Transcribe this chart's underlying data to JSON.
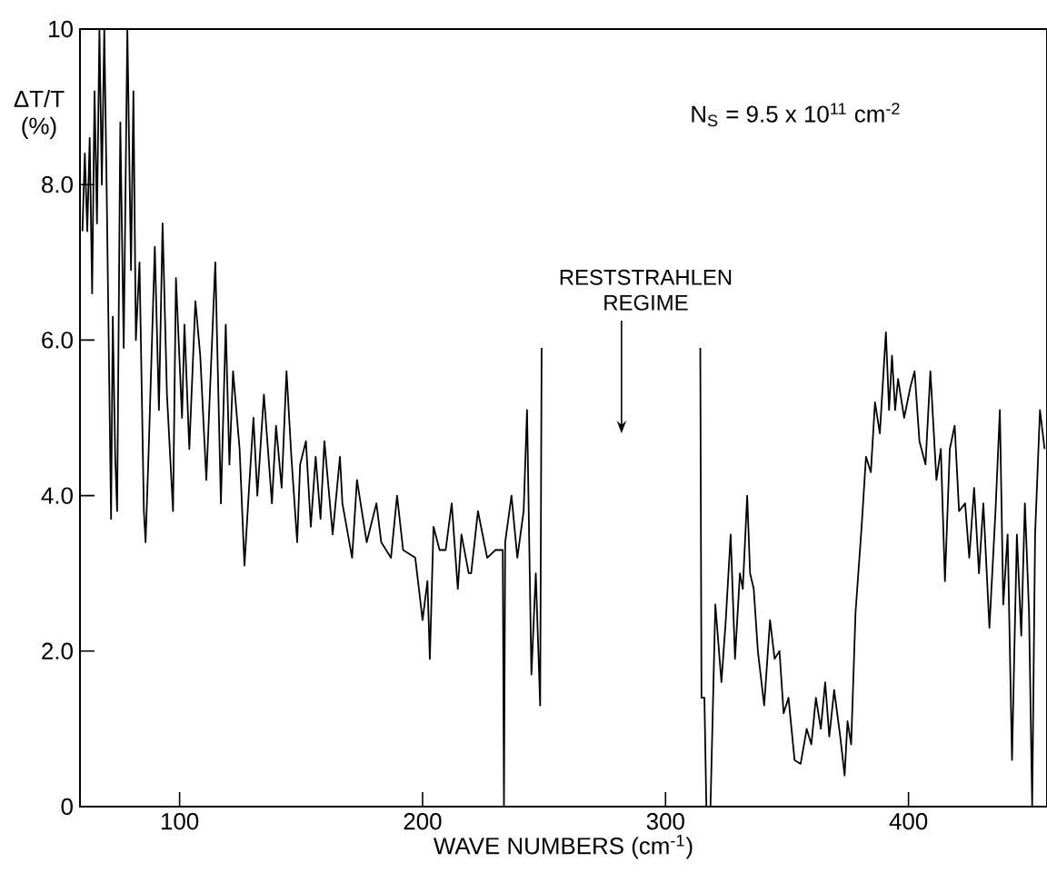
{
  "chart_data": {
    "type": "line",
    "xlabel": "WAVE NUMBERS (cm$^{-1}$)",
    "ylabel": "ΔT/T (%)",
    "xlim": [
      59,
      457
    ],
    "ylim": [
      0,
      10
    ],
    "xticks": [
      100,
      200,
      300,
      400
    ],
    "yticks": [
      0,
      {
        "value": 2,
        "label": "2.0"
      },
      {
        "value": 4,
        "label": "4.0"
      },
      {
        "value": 6,
        "label": "6.0"
      },
      {
        "value": 8,
        "label": "8.0"
      },
      10
    ],
    "marker": "none",
    "line_style": "solid",
    "annotations": [
      "N$_{S}$ = 9.5 x 10$^{11}$ cm$^{-2}$",
      "RESTSTRAHLEN REGIME"
    ],
    "series": [
      {
        "color": "#000000",
        "x": [
          60,
          61,
          62,
          63,
          64,
          65,
          66,
          67,
          68,
          69,
          70,
          71.8,
          72.5,
          73.5,
          74.3,
          75.6,
          77,
          78.5,
          80,
          81,
          82,
          83.5,
          85.3,
          86,
          87.3,
          89.8,
          91.5,
          93,
          94.8,
          97.3,
          98.5,
          101,
          102,
          104,
          106.5,
          108.5,
          111,
          114.7,
          117,
          119,
          120.5,
          122,
          124.7,
          126.7,
          128.4,
          130.4,
          132,
          134.7,
          138,
          139.7,
          142,
          144,
          146,
          148.4,
          149.6,
          152,
          154,
          156,
          158,
          159.6,
          163,
          166,
          167,
          171,
          173,
          177,
          181,
          183,
          187,
          189.5,
          192,
          197,
          200,
          202,
          203,
          204.5,
          207,
          209.5,
          212,
          214.5,
          216,
          219,
          220,
          222.8,
          226.6,
          230,
          233,
          233.5,
          234,
          236.6,
          239,
          241.6,
          243,
          244.8,
          246.6,
          248.4,
          249,
          281,
          314.3,
          314.8,
          316,
          316.8,
          318.5,
          320.5,
          323,
          324.8,
          326.8,
          328.6,
          330.6,
          331.8,
          333.6,
          334.8,
          336.3,
          338,
          340.6,
          343,
          344.9,
          346.9,
          348.6,
          350.6,
          353.1,
          355.6,
          358.1,
          360,
          361.9,
          363.9,
          365.7,
          367.4,
          369.4,
          371.9,
          373.7,
          374.9,
          376.4,
          378.2,
          380.7,
          382.5,
          384.5,
          386.2,
          388.2,
          390.7,
          392,
          393.2,
          394.5,
          395.7,
          398.2,
          400.8,
          402.5,
          404.5,
          407,
          409,
          411.5,
          413.3,
          415,
          417,
          419,
          420.8,
          423.3,
          425,
          427,
          429,
          430.8,
          433.3,
          435.8,
          437.6,
          439,
          440.8,
          442.6,
          444.6,
          446.4,
          447.9,
          449.6,
          450.9,
          452.1,
          454.1,
          456
        ],
        "values": [
          7.4,
          8.4,
          7.4,
          8.6,
          6.6,
          9.2,
          7.5,
          10,
          8.0,
          10,
          7.9,
          3.7,
          6.3,
          4.5,
          3.8,
          8.8,
          5.9,
          10,
          6.9,
          9.2,
          6.0,
          7.0,
          3.8,
          3.4,
          4.6,
          7.2,
          5.1,
          7.5,
          5.3,
          3.8,
          6.8,
          5.0,
          6.2,
          4.6,
          6.5,
          5.8,
          4.2,
          7.0,
          3.9,
          6.2,
          4.4,
          5.6,
          4.6,
          3.1,
          4.0,
          5.0,
          4.0,
          5.3,
          3.9,
          4.9,
          4.1,
          5.6,
          4.5,
          3.4,
          4.4,
          4.7,
          3.6,
          4.5,
          3.7,
          4.7,
          3.5,
          4.5,
          3.9,
          3.2,
          4.2,
          3.4,
          3.9,
          3.4,
          3.2,
          4.0,
          3.3,
          3.2,
          2.4,
          2.9,
          1.9,
          3.6,
          3.3,
          3.3,
          3.9,
          2.8,
          3.5,
          3.0,
          3.0,
          3.8,
          3.2,
          3.3,
          3.3,
          0,
          3.4,
          4.0,
          3.2,
          3.8,
          5.1,
          1.7,
          3.0,
          1.3,
          5.9,
          null,
          5.9,
          1.4,
          1.4,
          0,
          0,
          2.6,
          1.6,
          2.4,
          3.5,
          1.9,
          3.0,
          2.8,
          4.0,
          3.0,
          2.8,
          2.0,
          1.3,
          2.4,
          1.9,
          2.0,
          1.2,
          1.4,
          0.6,
          0.55,
          1.0,
          0.8,
          1.4,
          1.0,
          1.6,
          0.9,
          1.5,
          0.9,
          0.4,
          1.1,
          0.8,
          2.5,
          3.6,
          4.5,
          4.3,
          5.2,
          4.8,
          6.1,
          5.1,
          5.8,
          5.1,
          5.5,
          5.0,
          5.4,
          5.6,
          4.7,
          4.4,
          5.6,
          4.2,
          4.6,
          2.9,
          4.6,
          4.9,
          3.8,
          3.9,
          3.2,
          4.1,
          3.0,
          3.9,
          2.3,
          3.8,
          5.1,
          2.6,
          3.5,
          0.6,
          3.5,
          2.2,
          3.9,
          2.5,
          0,
          3.5,
          5.1,
          4.6
        ]
      }
    ]
  }
}
